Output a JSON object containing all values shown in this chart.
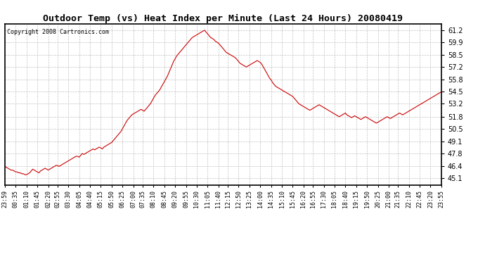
{
  "title": "Outdoor Temp (vs) Heat Index per Minute (Last 24 Hours) 20080419",
  "copyright": "Copyright 2008 Cartronics.com",
  "line_color": "#cc0000",
  "background_color": "#ffffff",
  "grid_color": "#bbbbbb",
  "yticks": [
    45.1,
    46.4,
    47.8,
    49.1,
    50.5,
    51.8,
    53.2,
    54.5,
    55.8,
    57.2,
    58.5,
    59.9,
    61.2
  ],
  "ymin": 44.4,
  "ymax": 61.9,
  "xtick_labels": [
    "23:59",
    "00:35",
    "01:10",
    "01:45",
    "02:20",
    "02:55",
    "03:30",
    "04:05",
    "04:40",
    "05:15",
    "05:50",
    "06:25",
    "07:00",
    "07:35",
    "08:10",
    "08:45",
    "09:20",
    "09:55",
    "10:30",
    "11:05",
    "11:40",
    "12:15",
    "12:50",
    "13:25",
    "14:00",
    "14:35",
    "15:10",
    "15:45",
    "16:20",
    "16:55",
    "17:30",
    "18:05",
    "18:40",
    "19:15",
    "19:50",
    "20:25",
    "21:00",
    "21:35",
    "22:10",
    "22:45",
    "23:20",
    "23:55"
  ],
  "curve_y": [
    46.4,
    46.3,
    46.2,
    46.1,
    46.0,
    46.0,
    45.9,
    45.8,
    45.8,
    45.7,
    45.7,
    45.6,
    45.6,
    45.5,
    45.5,
    45.6,
    45.7,
    45.9,
    46.1,
    46.0,
    45.9,
    45.8,
    45.7,
    45.9,
    46.0,
    46.1,
    46.2,
    46.1,
    46.0,
    46.1,
    46.2,
    46.3,
    46.4,
    46.5,
    46.5,
    46.4,
    46.5,
    46.6,
    46.7,
    46.8,
    46.9,
    47.0,
    47.1,
    47.2,
    47.3,
    47.4,
    47.5,
    47.5,
    47.4,
    47.6,
    47.8,
    47.7,
    47.8,
    47.9,
    48.0,
    48.1,
    48.2,
    48.3,
    48.2,
    48.3,
    48.4,
    48.5,
    48.4,
    48.3,
    48.5,
    48.6,
    48.7,
    48.8,
    48.9,
    49.0,
    49.2,
    49.4,
    49.6,
    49.8,
    50.0,
    50.2,
    50.5,
    50.8,
    51.1,
    51.4,
    51.6,
    51.8,
    52.0,
    52.1,
    52.2,
    52.3,
    52.4,
    52.5,
    52.6,
    52.5,
    52.4,
    52.6,
    52.8,
    53.0,
    53.2,
    53.5,
    53.8,
    54.1,
    54.3,
    54.5,
    54.7,
    55.0,
    55.3,
    55.6,
    55.9,
    56.2,
    56.6,
    57.0,
    57.4,
    57.8,
    58.1,
    58.4,
    58.6,
    58.8,
    59.0,
    59.2,
    59.4,
    59.6,
    59.8,
    60.0,
    60.2,
    60.4,
    60.5,
    60.6,
    60.7,
    60.8,
    60.9,
    61.0,
    61.1,
    61.2,
    61.0,
    60.8,
    60.6,
    60.4,
    60.3,
    60.2,
    60.0,
    59.9,
    59.8,
    59.6,
    59.4,
    59.2,
    59.0,
    58.8,
    58.7,
    58.6,
    58.5,
    58.4,
    58.3,
    58.2,
    58.0,
    57.8,
    57.6,
    57.5,
    57.4,
    57.3,
    57.2,
    57.3,
    57.4,
    57.5,
    57.6,
    57.7,
    57.8,
    57.9,
    57.8,
    57.7,
    57.5,
    57.2,
    56.9,
    56.6,
    56.3,
    56.0,
    55.8,
    55.5,
    55.3,
    55.1,
    55.0,
    54.9,
    54.8,
    54.7,
    54.6,
    54.5,
    54.4,
    54.3,
    54.2,
    54.1,
    54.0,
    53.8,
    53.6,
    53.4,
    53.2,
    53.1,
    53.0,
    52.9,
    52.8,
    52.7,
    52.6,
    52.5,
    52.6,
    52.7,
    52.8,
    52.9,
    53.0,
    53.1,
    53.0,
    52.9,
    52.8,
    52.7,
    52.6,
    52.5,
    52.4,
    52.3,
    52.2,
    52.1,
    52.0,
    51.9,
    51.8,
    51.9,
    52.0,
    52.1,
    52.2,
    52.0,
    51.9,
    51.8,
    51.7,
    51.8,
    51.9,
    51.8,
    51.7,
    51.6,
    51.5,
    51.6,
    51.7,
    51.8,
    51.7,
    51.6,
    51.5,
    51.4,
    51.3,
    51.2,
    51.1,
    51.2,
    51.3,
    51.4,
    51.5,
    51.6,
    51.7,
    51.8,
    51.7,
    51.6,
    51.7,
    51.8,
    51.9,
    52.0,
    52.1,
    52.2,
    52.1,
    52.0,
    52.1,
    52.2,
    52.3,
    52.4,
    52.5,
    52.6,
    52.7,
    52.8,
    52.9,
    53.0,
    53.1,
    53.2,
    53.3,
    53.4,
    53.5,
    53.6,
    53.7,
    53.8,
    53.9,
    54.0,
    54.1,
    54.2,
    54.3,
    54.4,
    54.5
  ]
}
